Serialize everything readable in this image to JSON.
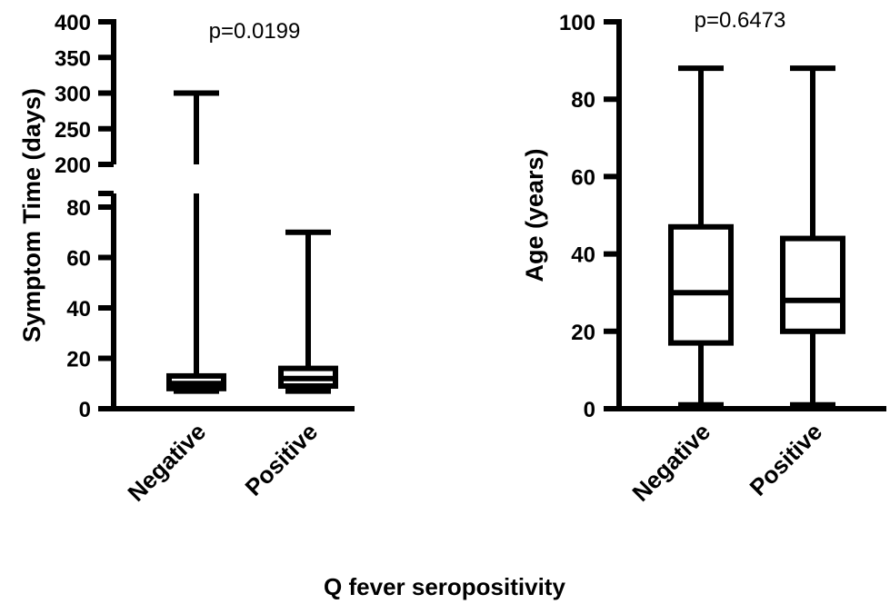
{
  "figure": {
    "xlabel": "Q fever seropositivity"
  },
  "chart_data": [
    {
      "type": "box",
      "ylabel": "Symptom Time (days)",
      "annotation": "p=0.0199",
      "categories": [
        "Negative",
        "Positive"
      ],
      "axis_break": true,
      "lower_segment": {
        "ylim": [
          0,
          85
        ],
        "ticks": [
          0,
          20,
          40,
          60,
          80
        ]
      },
      "upper_segment": {
        "ylim": [
          200,
          400
        ],
        "ticks": [
          200,
          250,
          300,
          350,
          400
        ]
      },
      "boxes": [
        {
          "name": "Negative",
          "min": 7,
          "q1": 8,
          "median": 10,
          "q3": 13,
          "max": 300
        },
        {
          "name": "Positive",
          "min": 7,
          "q1": 9,
          "median": 12,
          "q3": 16,
          "max": 70
        }
      ]
    },
    {
      "type": "box",
      "ylabel": "Age (years)",
      "annotation": "p=0.6473",
      "categories": [
        "Negative",
        "Positive"
      ],
      "ylim": [
        0,
        100
      ],
      "ticks": [
        0,
        20,
        40,
        60,
        80,
        100
      ],
      "boxes": [
        {
          "name": "Negative",
          "min": 1,
          "q1": 17,
          "median": 30,
          "q3": 47,
          "max": 88
        },
        {
          "name": "Positive",
          "min": 1,
          "q1": 20,
          "median": 28,
          "q3": 44,
          "max": 88
        }
      ]
    }
  ]
}
